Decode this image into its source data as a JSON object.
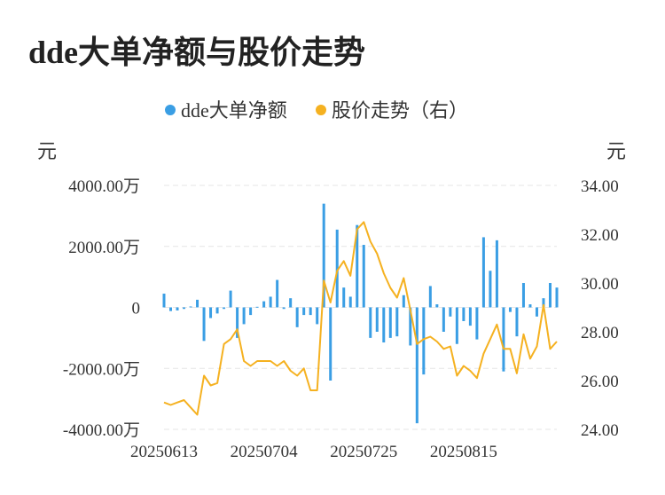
{
  "title": "dde大单净额与股价走势",
  "chart_data": {
    "type": "bar+line",
    "legend": [
      {
        "name": "dde大单净额",
        "color": "#3a9ee4"
      },
      {
        "name": "股价走势（右）",
        "color": "#f5b120"
      }
    ],
    "legend_position": "top-center",
    "left_unit": "元",
    "right_unit": "元",
    "left_axis": {
      "min": -4000,
      "max": 4000,
      "ticks": [
        4000,
        2000,
        0,
        -2000,
        -4000
      ],
      "tick_labels": [
        "4000.00万",
        "2000.00万",
        "0",
        "-2000.00万",
        "-4000.00万"
      ]
    },
    "right_axis": {
      "min": 24,
      "max": 34,
      "ticks": [
        34,
        32,
        30,
        28,
        26,
        24
      ],
      "tick_labels": [
        "34.00",
        "32.00",
        "30.00",
        "28.00",
        "26.00",
        "24.00"
      ]
    },
    "x_tick_labels": [
      {
        "label": "20250613",
        "index": 0
      },
      {
        "label": "20250704",
        "index": 15
      },
      {
        "label": "20250725",
        "index": 30
      },
      {
        "label": "20250815",
        "index": 45
      }
    ],
    "grid": "horizontal-dashed",
    "series": [
      {
        "name": "dde大单净额",
        "type": "bar",
        "values": [
          450,
          -120,
          -100,
          -50,
          30,
          250,
          -1100,
          -350,
          -200,
          -50,
          550,
          -1000,
          -550,
          -250,
          20,
          200,
          350,
          900,
          -50,
          300,
          -650,
          -250,
          -250,
          -550,
          3400,
          -2400,
          2550,
          650,
          350,
          2700,
          2050,
          -1000,
          -800,
          -1150,
          -1000,
          -950,
          400,
          -1250,
          -3800,
          -2200,
          700,
          100,
          -800,
          -300,
          -1200,
          -450,
          -600,
          -1050,
          2300,
          1200,
          2200,
          -2100,
          -150,
          -950,
          800,
          100,
          -300,
          300,
          800,
          650
        ]
      },
      {
        "name": "股价走势（右）",
        "type": "line",
        "values": [
          25.1,
          25.0,
          25.1,
          25.2,
          24.9,
          24.6,
          26.2,
          25.8,
          25.9,
          27.5,
          27.7,
          28.1,
          26.8,
          26.6,
          26.8,
          26.8,
          26.8,
          26.6,
          26.8,
          26.4,
          26.2,
          26.5,
          25.6,
          25.6,
          30.1,
          29.2,
          30.5,
          30.9,
          30.3,
          32.2,
          32.5,
          31.7,
          31.2,
          30.4,
          29.8,
          29.4,
          30.2,
          28.9,
          27.5,
          27.7,
          27.8,
          27.6,
          27.3,
          27.4,
          26.2,
          26.6,
          26.4,
          26.1,
          27.1,
          27.7,
          28.3,
          27.3,
          27.3,
          26.3,
          27.9,
          26.9,
          27.4,
          29.1,
          27.3,
          27.6
        ]
      }
    ]
  }
}
